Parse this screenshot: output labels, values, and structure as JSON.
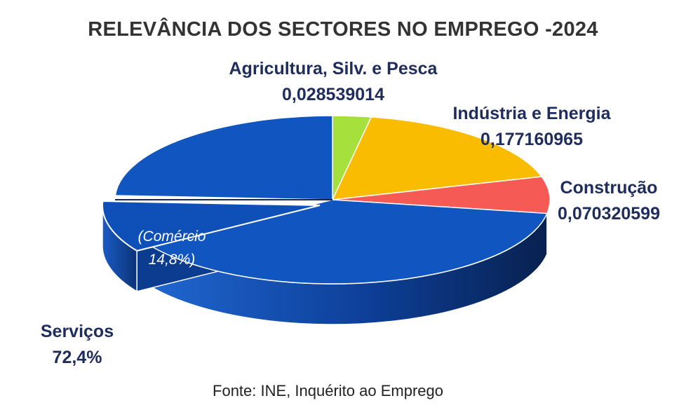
{
  "title": "RELEVÂNCIA DOS SECTORES NO EMPREGO -2024",
  "source": "Fonte: INE, Inquérito ao Emprego",
  "colors": {
    "agriculture": "#a6e03c",
    "industry": "#f9bc00",
    "construction": "#f55a55",
    "services": "#1055c0",
    "services_side": "#0a2f6f",
    "label_text": "#1f2d5c"
  },
  "chart_data": {
    "type": "pie",
    "title": "RELEVÂNCIA DOS SECTORES NO EMPREGO -2024",
    "style": "3d-exploded",
    "slices": [
      {
        "name": "Agricultura, Silv. e Pesca",
        "value": 0.028539014,
        "label": "0,028539014",
        "color": "#a6e03c"
      },
      {
        "name": "Indústria e Energia",
        "value": 0.177160965,
        "label": "0,177160965",
        "color": "#f9bc00"
      },
      {
        "name": "Construção",
        "value": 0.070320599,
        "label": "0,070320599",
        "color": "#f55a55"
      },
      {
        "name": "Serviços",
        "value": 0.724,
        "label": "72,4%",
        "color": "#1055c0",
        "sub_slice": {
          "name": "(Comércio",
          "value": 0.148,
          "label": "14,8%)"
        }
      }
    ]
  }
}
